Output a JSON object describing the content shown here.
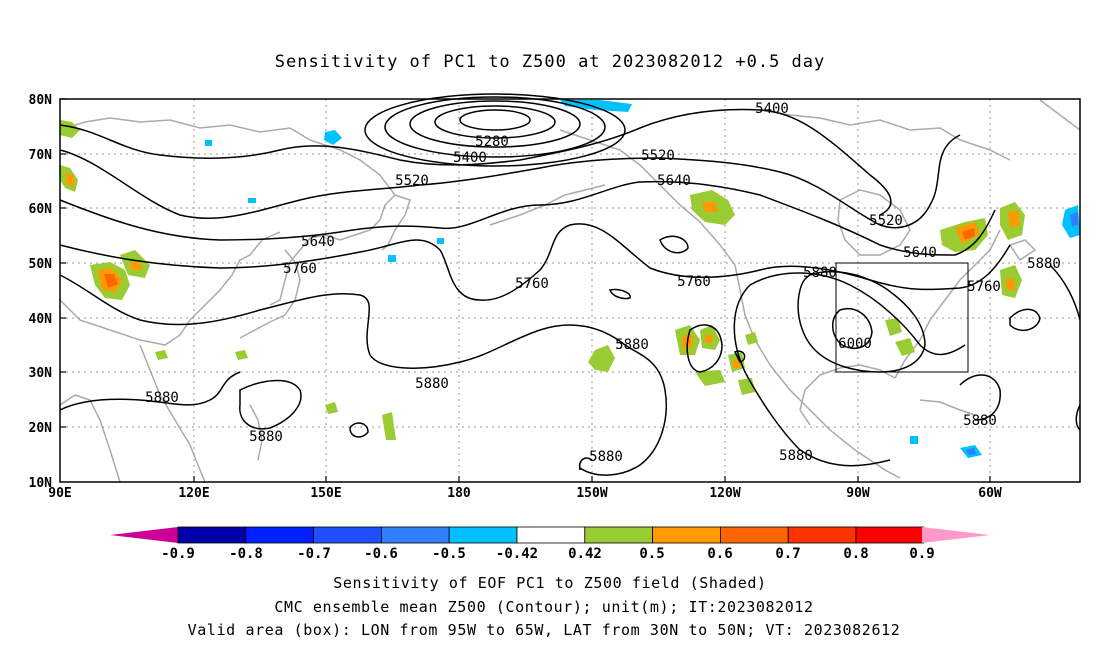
{
  "title": "Sensitivity of PC1 to Z500 at 2023082012 +0.5 day",
  "lat_labels": [
    "80N",
    "70N",
    "60N",
    "50N",
    "40N",
    "30N",
    "20N",
    "10N"
  ],
  "lon_labels": [
    "90E",
    "120E",
    "150E",
    "180",
    "150W",
    "120W",
    "90W",
    "60W"
  ],
  "contour_labels": [
    "5280",
    "5400",
    "5400",
    "5520",
    "5520",
    "5520",
    "5640",
    "5640",
    "5640",
    "5760",
    "5760",
    "5760",
    "5760",
    "5880",
    "5880",
    "5880",
    "5880",
    "5880",
    "5880",
    "5880",
    "5880",
    "5880",
    "6000"
  ],
  "colorbar": {
    "labels": [
      "-0.9",
      "-0.8",
      "-0.7",
      "-0.6",
      "-0.5",
      "-0.42",
      "0.42",
      "0.5",
      "0.6",
      "0.7",
      "0.8",
      "0.9"
    ],
    "colors": [
      "#0000aa",
      "#0020ff",
      "#1f4fff",
      "#2f7fff",
      "#00c0ff",
      "#ffffff",
      "#99cc33",
      "#ff9900",
      "#ff6600",
      "#ff3300",
      "#ff0000"
    ],
    "low_arrow_color": "#cc0099",
    "high_arrow_color": "#ff99cc"
  },
  "footer": {
    "line1": "Sensitivity of EOF PC1 to Z500 field (Shaded)",
    "line2": "CMC ensemble mean Z500 (Contour); unit(m); IT:2023082012",
    "line3": "Valid area (box): LON from 95W to 65W, LAT from 30N to 50N; VT: 2023082612"
  }
}
